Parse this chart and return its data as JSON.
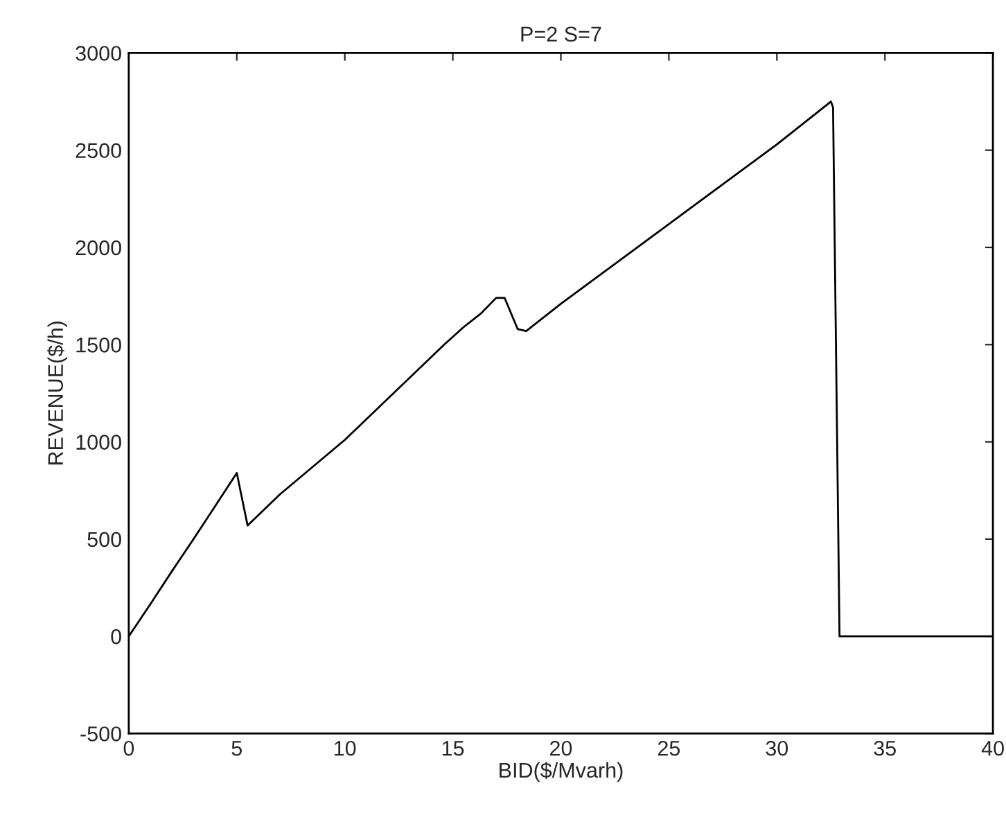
{
  "chart_data": {
    "type": "line",
    "title": "P=2 S=7",
    "xlabel": "BID($/Mvarh)",
    "ylabel": "REVENUE($/h)",
    "series": [
      {
        "color": "#000000",
        "x": [
          0,
          1,
          2,
          3,
          4,
          5.0,
          5.5,
          7,
          10,
          14.6,
          15.5,
          16.3,
          17.0,
          17.4,
          18.0,
          18.4,
          20,
          25,
          30,
          32.5,
          32.6,
          32.9,
          33.3,
          40
        ],
        "values": [
          0,
          165,
          335,
          500,
          670,
          840,
          570,
          730,
          1010,
          1500,
          1590,
          1660,
          1740,
          1740,
          1580,
          1570,
          1710,
          2120,
          2530,
          2750,
          2720,
          0,
          0,
          0
        ]
      }
    ],
    "xlim": [
      0,
      40
    ],
    "ylim": [
      -500,
      3000
    ],
    "xticks": [
      0,
      5,
      10,
      15,
      20,
      25,
      30,
      35,
      40
    ],
    "yticks": [
      -500,
      0,
      500,
      1000,
      1500,
      2000,
      2500,
      3000
    ],
    "grid": false,
    "legend": false,
    "marker": "none",
    "line_style": "solid"
  }
}
